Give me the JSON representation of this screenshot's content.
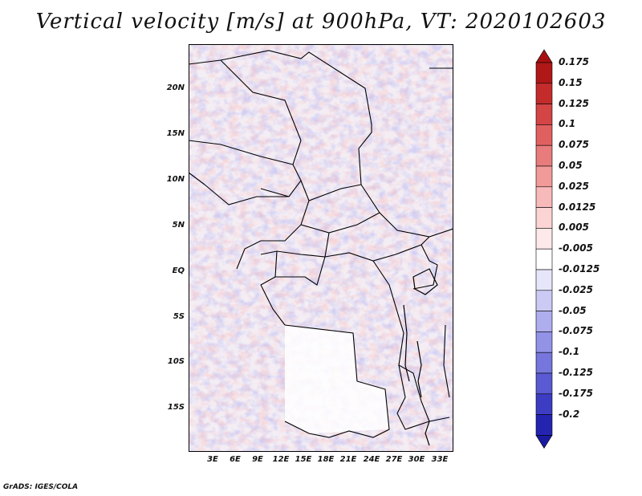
{
  "title": "Vertical velocity [m/s] at 900hPa, VT: 2020102603",
  "footer": "GrADS: IGES/COLA",
  "map": {
    "region": "Central Africa",
    "lon_range": [
      0,
      35
    ],
    "lat_range": [
      -20,
      25
    ],
    "lat_ticks": [
      {
        "value": 20,
        "label": "20N"
      },
      {
        "value": 15,
        "label": "15N"
      },
      {
        "value": 10,
        "label": "10N"
      },
      {
        "value": 5,
        "label": "5N"
      },
      {
        "value": 0,
        "label": "EQ"
      },
      {
        "value": -5,
        "label": "5S"
      },
      {
        "value": -10,
        "label": "10S"
      },
      {
        "value": -15,
        "label": "15S"
      }
    ],
    "lon_ticks": [
      {
        "value": 3,
        "label": "3E"
      },
      {
        "value": 6,
        "label": "6E"
      },
      {
        "value": 9,
        "label": "9E"
      },
      {
        "value": 12,
        "label": "12E"
      },
      {
        "value": 15,
        "label": "15E"
      },
      {
        "value": 18,
        "label": "18E"
      },
      {
        "value": 21,
        "label": "21E"
      },
      {
        "value": 24,
        "label": "24E"
      },
      {
        "value": 27,
        "label": "27E"
      },
      {
        "value": 30,
        "label": "30E"
      },
      {
        "value": 33,
        "label": "33E"
      }
    ]
  },
  "colorbar": {
    "levels": [
      {
        "label": "0.175",
        "color": "#b01818"
      },
      {
        "label": "0.15",
        "color": "#c42c2c"
      },
      {
        "label": "0.125",
        "color": "#d44545"
      },
      {
        "label": "0.1",
        "color": "#e06060"
      },
      {
        "label": "0.075",
        "color": "#e87c7c"
      },
      {
        "label": "0.05",
        "color": "#f19a9a"
      },
      {
        "label": "0.025",
        "color": "#f7b9b9"
      },
      {
        "label": "0.0125",
        "color": "#fbd4d4"
      },
      {
        "label": "0.005",
        "color": "#fde9e9"
      },
      {
        "label": "-0.005",
        "color": "#ffffff"
      },
      {
        "label": "-0.0125",
        "color": "#e6e6fb"
      },
      {
        "label": "-0.025",
        "color": "#cacaf4"
      },
      {
        "label": "-0.05",
        "color": "#aeaeee"
      },
      {
        "label": "-0.075",
        "color": "#9292e6"
      },
      {
        "label": "-0.1",
        "color": "#7676dd"
      },
      {
        "label": "-0.125",
        "color": "#5a5ad2"
      },
      {
        "label": "-0.175",
        "color": "#3d3dc4"
      },
      {
        "label": "-0.2",
        "color": "#2424b0"
      }
    ],
    "top_color": "#a81010",
    "bottom_color": "#1a1aa0"
  }
}
